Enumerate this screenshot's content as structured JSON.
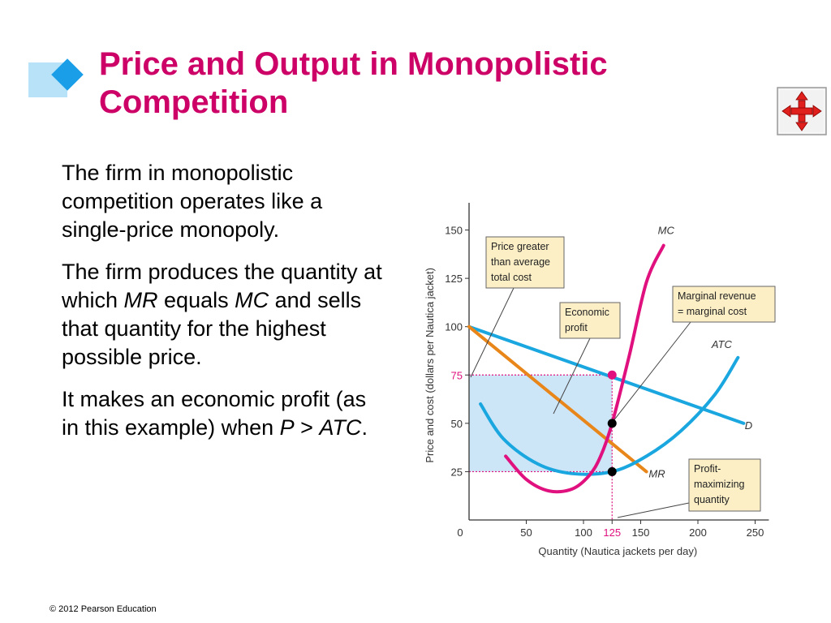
{
  "slide": {
    "title_line1": "Price and Output in Monopolistic",
    "title_line2": "Competition",
    "paragraphs": [
      {
        "text": "The firm in monopolistic competition operates like a single-price monopoly."
      },
      {
        "part1": "The firm produces the quantity at which ",
        "mr": "MR",
        "part2": " equals ",
        "mc": "MC",
        "part3": " and sells that quantity for the highest possible price."
      },
      {
        "part1": "It makes an economic profit (as in this example) when ",
        "p": "P",
        "gt": " > ",
        "atc": "ATC",
        "end": "."
      }
    ],
    "copyright": "© 2012 Pearson Education",
    "nav_icon": "four-arrows-icon"
  },
  "chart_data": {
    "type": "line",
    "xlabel": "Quantity (Nautica jackets per day)",
    "ylabel": "Price and cost (dollars per Nautica jacket)",
    "xlim": [
      0,
      260
    ],
    "ylim": [
      0,
      160
    ],
    "xticks": [
      0,
      50,
      100,
      125,
      150,
      200,
      250
    ],
    "yticks": [
      25,
      50,
      75,
      100,
      125,
      150
    ],
    "highlight_ticks": {
      "x": 125,
      "y": 75
    },
    "series": [
      {
        "name": "D",
        "color": "#1aa7e0",
        "points": [
          [
            0,
            100
          ],
          [
            240,
            50
          ]
        ]
      },
      {
        "name": "MR",
        "color": "#e8861a",
        "points": [
          [
            0,
            100
          ],
          [
            155,
            25
          ]
        ]
      },
      {
        "name": "ATC",
        "color": "#1aa7e0",
        "points": [
          [
            10,
            60
          ],
          [
            30,
            42
          ],
          [
            60,
            29
          ],
          [
            90,
            24
          ],
          [
            125,
            25
          ],
          [
            155,
            33
          ],
          [
            185,
            46
          ],
          [
            215,
            65
          ],
          [
            235,
            84
          ]
        ]
      },
      {
        "name": "MC",
        "color": "#e0117f",
        "points": [
          [
            32,
            33
          ],
          [
            50,
            21
          ],
          [
            70,
            15
          ],
          [
            90,
            16
          ],
          [
            105,
            23
          ],
          [
            115,
            33
          ],
          [
            125,
            50
          ],
          [
            140,
            85
          ],
          [
            155,
            123
          ],
          [
            170,
            142
          ]
        ]
      }
    ],
    "profit_region": {
      "x": [
        0,
        125
      ],
      "y": [
        25,
        75
      ]
    },
    "points": [
      [
        125,
        75
      ],
      [
        125,
        50
      ],
      [
        125,
        25
      ]
    ],
    "callouts": [
      {
        "lines": [
          "Price greater",
          "than average",
          "total cost"
        ]
      },
      {
        "lines": [
          "Economic",
          "profit"
        ]
      },
      {
        "lines": [
          "Marginal revenue",
          "= marginal cost"
        ]
      },
      {
        "lines": [
          "Profit-",
          "maximizing",
          "quantity"
        ]
      }
    ],
    "colors": {
      "callout_bg": "#fcefc6",
      "profit_fill": "#c9e4f7",
      "title": "#cc0066",
      "guide": "#e0117f"
    }
  }
}
